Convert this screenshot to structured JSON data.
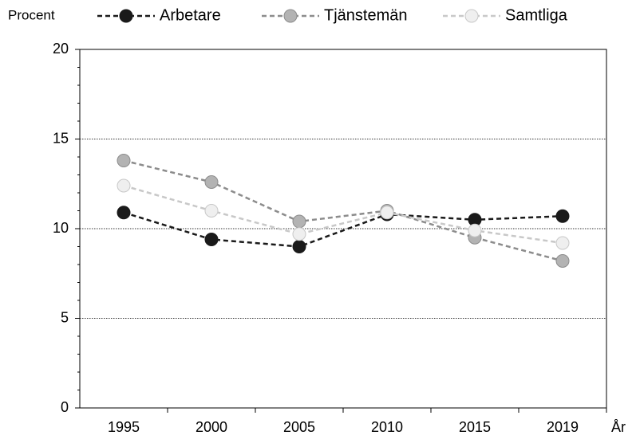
{
  "chart_data": {
    "type": "line",
    "y_label": "Procent",
    "x_label": "År",
    "categories": [
      "1995",
      "2000",
      "2005",
      "2010",
      "2015",
      "2019"
    ],
    "series": [
      {
        "name": "Arbetare",
        "color": "#1a1a1a",
        "marker_color": "#1a1a1a",
        "values": [
          10.9,
          9.4,
          9.0,
          10.8,
          10.5,
          10.7
        ]
      },
      {
        "name": "Tjänstemän",
        "color": "#8c8c8c",
        "marker_color": "#b3b3b3",
        "values": [
          13.8,
          12.6,
          10.4,
          11.0,
          9.5,
          8.2
        ]
      },
      {
        "name": "Samtliga",
        "color": "#c8c8c8",
        "marker_color": "#efefef",
        "values": [
          12.4,
          11.0,
          9.7,
          10.9,
          9.9,
          9.2
        ]
      }
    ],
    "ylim": [
      0,
      20
    ],
    "yticks": [
      0,
      5,
      10,
      15,
      20
    ],
    "y_minor_ticks": [
      1,
      2,
      3,
      4,
      6,
      7,
      8,
      9,
      11,
      12,
      13,
      14,
      16,
      17,
      18,
      19
    ],
    "grid": true
  }
}
